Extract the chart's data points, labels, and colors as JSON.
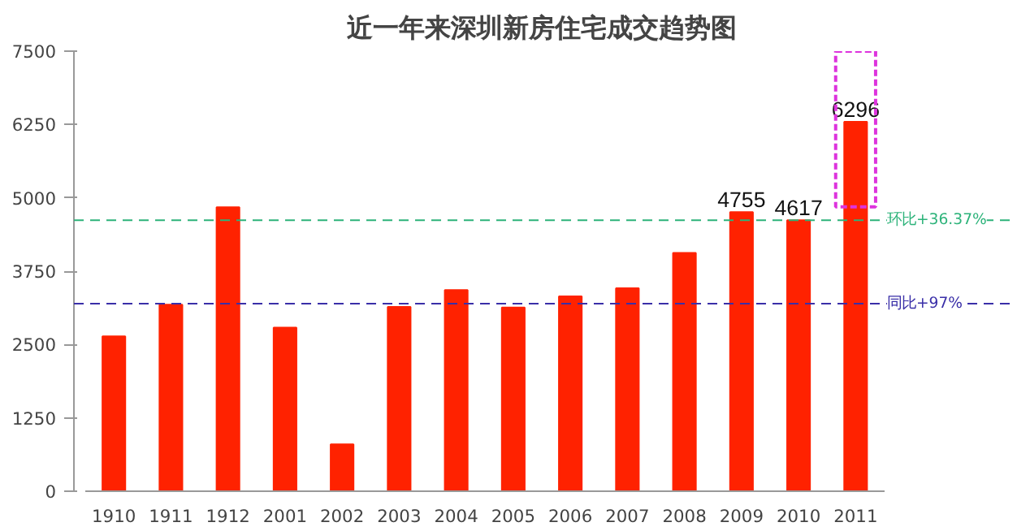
{
  "chart_data": {
    "type": "bar",
    "title": "近一年来深圳新房住宅成交趋势图",
    "categories": [
      "1910",
      "1911",
      "1912",
      "2001",
      "2002",
      "2003",
      "2004",
      "2005",
      "2006",
      "2007",
      "2008",
      "2009",
      "2010",
      "2011"
    ],
    "values": [
      2640,
      3180,
      4840,
      2790,
      800,
      3140,
      3430,
      3130,
      3320,
      3460,
      4060,
      4755,
      4617,
      6296
    ],
    "value_labels": [
      null,
      null,
      null,
      null,
      null,
      null,
      null,
      null,
      null,
      null,
      null,
      "4755",
      "4617",
      "6296"
    ],
    "color": "#ff2200",
    "ylim": [
      0,
      7500
    ],
    "yticks": [
      0,
      1250,
      2500,
      3750,
      5000,
      6250,
      7500
    ],
    "grid": false,
    "ref_lines": [
      {
        "axis": "y",
        "value": 4617,
        "label": "环比+36.37%",
        "color": "#2db37a",
        "line_style": "dashed"
      },
      {
        "axis": "y",
        "value": 3196,
        "label": "同比+97%",
        "color": "#3a2fa8",
        "line_style": "dashed"
      }
    ]
  }
}
